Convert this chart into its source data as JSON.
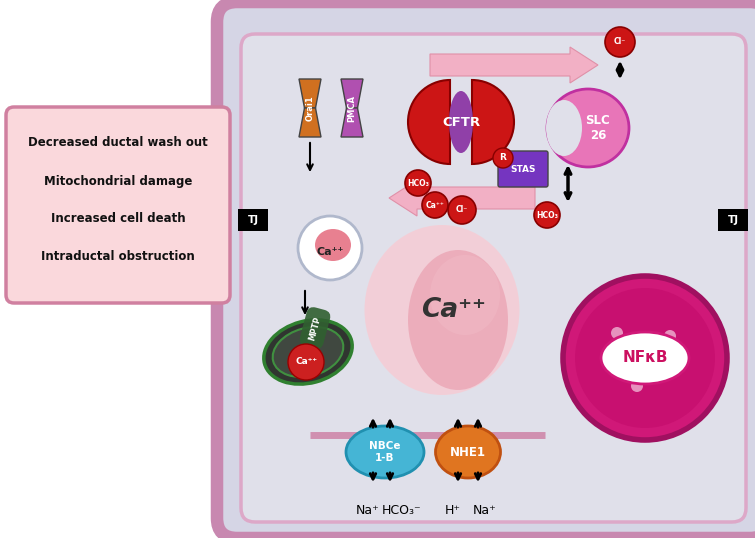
{
  "cell_border_color": "#c888b0",
  "cell_fill": "#d5d5e5",
  "cell_inner_fill": "#e0e0ea",
  "legend_fill": "#fad8dc",
  "legend_border": "#d080a0",
  "legend_texts": [
    "Decreased ductal wash out",
    "Mitochondrial damage",
    "Increased cell death",
    "Intraductal obstruction"
  ],
  "cftr_color": "#cc1515",
  "slc_color": "#e875b8",
  "orai_color": "#d07020",
  "pmca_color": "#b050b0",
  "nbc_color": "#45b5d5",
  "nhe_color": "#e07520",
  "nucleus_outer": "#d01878",
  "nucleus_inner": "#c01070",
  "mito_dark": "#303830",
  "mito_green": "#306830",
  "pink_arrow": "#f2b0c5",
  "red_ball": "#cc1515",
  "stas_color": "#7535c0"
}
